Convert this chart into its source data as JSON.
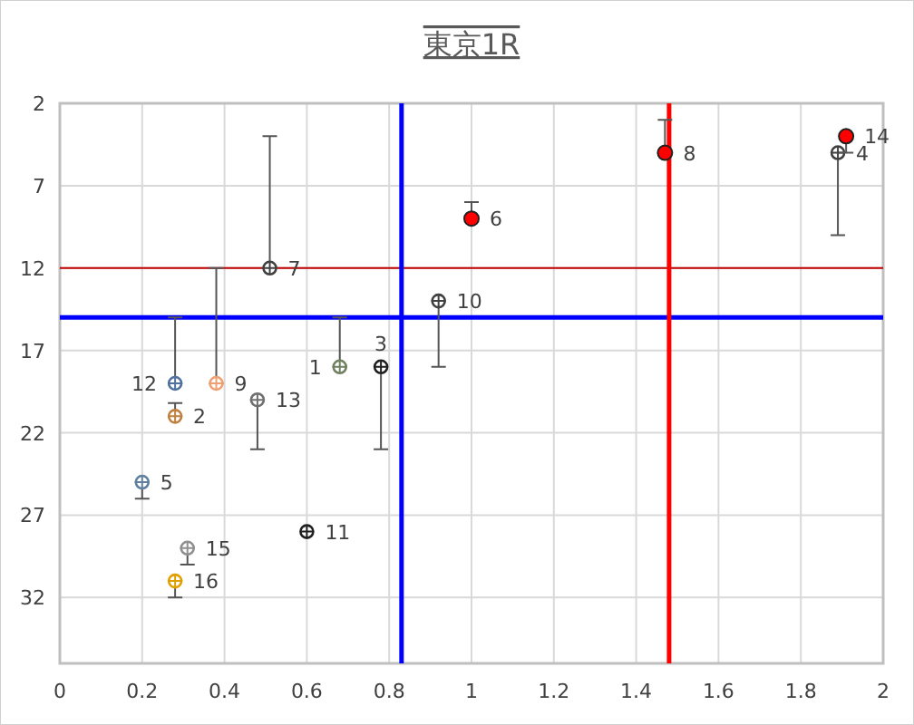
{
  "chart_data": {
    "type": "scatter",
    "title": "東京1R",
    "xlim": [
      0,
      2
    ],
    "xticks": [
      0,
      0.2,
      0.4,
      0.6,
      0.8,
      1,
      1.2,
      1.4,
      1.6,
      1.8,
      2
    ],
    "ylim": [
      36,
      2
    ],
    "yticks": [
      2,
      7,
      12,
      17,
      22,
      27,
      32
    ],
    "grid": true,
    "series": [
      {
        "marker": "circle",
        "x": [
          0.68,
          0.28,
          0.78,
          1.89,
          0.2,
          0.51,
          0.38,
          0.92,
          0.6,
          0.28,
          0.48,
          0.31,
          0.28
        ],
        "values": [
          18,
          21,
          18,
          5,
          25,
          12,
          19,
          14,
          28,
          19,
          20,
          29,
          31
        ],
        "colors": [
          "#708060",
          "#c08040",
          "#202020",
          "#404040",
          "#6080a0",
          "#404040",
          "#f0a070",
          "#404040",
          "#202020",
          "#5070a0",
          "#707070",
          "#909090",
          "#e0a000"
        ],
        "errors": [
          [
            15,
            18
          ],
          [
            20.2,
            21
          ],
          [
            18,
            23
          ],
          [
            5,
            10
          ],
          [
            25,
            26
          ],
          [
            4,
            12
          ],
          [
            12,
            19
          ],
          [
            14,
            18
          ],
          null,
          [
            15,
            19
          ],
          [
            20,
            23
          ],
          [
            29,
            30
          ],
          [
            31,
            32
          ]
        ]
      },
      {
        "marker": "circle",
        "color": "#ff0000",
        "x": [
          1,
          1.47,
          1.91
        ],
        "values": [
          9,
          5,
          4
        ],
        "errors": [
          [
            8,
            9
          ],
          [
            3,
            5
          ],
          [
            4,
            5
          ]
        ]
      }
    ],
    "ref_lines": [
      {
        "axis": "y",
        "value": 12,
        "color": "#c00000"
      },
      {
        "axis": "y",
        "value": 15,
        "color": "#0000ff"
      },
      {
        "axis": "x",
        "value": 0.83,
        "color": "#0000ff"
      },
      {
        "axis": "x",
        "value": 1.48,
        "color": "#ff0000"
      }
    ],
    "annotations": [
      {
        "text": "1",
        "x": 0.68,
        "y": 18
      },
      {
        "text": "2",
        "x": 0.28,
        "y": 21
      },
      {
        "text": "3",
        "x": 0.78,
        "y": 18
      },
      {
        "text": "4",
        "x": 1.89,
        "y": 5
      },
      {
        "text": "5",
        "x": 0.2,
        "y": 25
      },
      {
        "text": "6",
        "x": 1,
        "y": 9
      },
      {
        "text": "7",
        "x": 0.51,
        "y": 12
      },
      {
        "text": "8",
        "x": 1.47,
        "y": 5
      },
      {
        "text": "9",
        "x": 0.38,
        "y": 19
      },
      {
        "text": "10",
        "x": 0.92,
        "y": 14
      },
      {
        "text": "11",
        "x": 0.6,
        "y": 28
      },
      {
        "text": "12",
        "x": 0.28,
        "y": 19
      },
      {
        "text": "13",
        "x": 0.48,
        "y": 20
      },
      {
        "text": "14",
        "x": 1.91,
        "y": 4
      },
      {
        "text": "15",
        "x": 0.31,
        "y": 29
      },
      {
        "text": "16",
        "x": 0.28,
        "y": 31
      }
    ]
  }
}
